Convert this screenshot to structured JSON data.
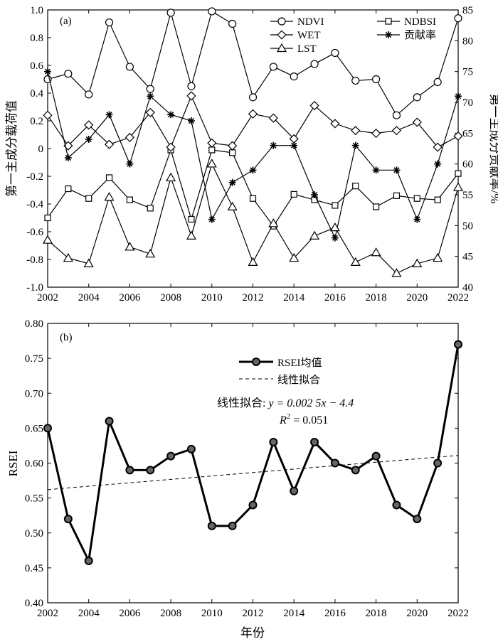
{
  "chart_data": [
    {
      "type": "line",
      "panel_label": "(a)",
      "x": [
        2002,
        2003,
        2004,
        2005,
        2006,
        2007,
        2008,
        2009,
        2010,
        2011,
        2012,
        2013,
        2014,
        2015,
        2016,
        2017,
        2018,
        2019,
        2020,
        2021,
        2022
      ],
      "xlim": [
        2002,
        2022
      ],
      "xticks": [
        "2002",
        "2004",
        "2006",
        "2008",
        "2010",
        "2012",
        "2014",
        "2016",
        "2018",
        "2020",
        "2022"
      ],
      "ylabel": "第一主成分载荷值",
      "ylim": [
        -1.0,
        1.0
      ],
      "yticks": [
        "-1.0",
        "-0.8",
        "-0.6",
        "-0.4",
        "-0.2",
        "0",
        "0.2",
        "0.4",
        "0.6",
        "0.8",
        "1.0"
      ],
      "y2label": "第一主成分贡献率/%",
      "y2lim": [
        40,
        85
      ],
      "y2ticks": [
        "40",
        "45",
        "50",
        "55",
        "60",
        "65",
        "70",
        "75",
        "80",
        "85"
      ],
      "legend_position": "top-right",
      "series": [
        {
          "name": "NDVI",
          "marker": "circle",
          "axis": "left",
          "values": [
            0.5,
            0.54,
            0.39,
            0.91,
            0.59,
            0.43,
            0.98,
            0.45,
            0.99,
            0.9,
            0.37,
            0.59,
            0.52,
            0.61,
            0.69,
            0.49,
            0.5,
            0.24,
            0.37,
            0.48,
            0.94
          ]
        },
        {
          "name": "NDBSI",
          "marker": "square",
          "axis": "left",
          "values": [
            -0.5,
            -0.29,
            -0.36,
            -0.21,
            -0.37,
            -0.43,
            -0.01,
            -0.51,
            -0.01,
            -0.03,
            -0.36,
            -0.56,
            -0.33,
            -0.37,
            -0.41,
            -0.27,
            -0.42,
            -0.34,
            -0.36,
            -0.37,
            -0.18
          ]
        },
        {
          "name": "WET",
          "marker": "diamond",
          "axis": "left",
          "values": [
            0.24,
            0.02,
            0.17,
            0.03,
            0.08,
            0.26,
            0.01,
            0.38,
            0.04,
            0.02,
            0.25,
            0.22,
            0.07,
            0.31,
            0.18,
            0.13,
            0.11,
            0.13,
            0.19,
            0.01,
            0.09
          ]
        },
        {
          "name": "贡献率",
          "marker": "star",
          "axis": "right",
          "values": [
            75,
            61,
            64,
            68,
            60,
            71,
            68,
            67,
            51,
            57,
            59,
            63,
            63,
            55,
            48,
            63,
            59,
            59,
            51,
            60,
            71
          ]
        },
        {
          "name": "LST",
          "marker": "triangle",
          "axis": "left",
          "values": [
            -0.66,
            -0.79,
            -0.83,
            -0.35,
            -0.71,
            -0.76,
            -0.21,
            -0.63,
            -0.11,
            -0.42,
            -0.82,
            -0.54,
            -0.79,
            -0.63,
            -0.57,
            -0.82,
            -0.75,
            -0.9,
            -0.83,
            -0.79,
            -0.28
          ]
        }
      ]
    },
    {
      "type": "line",
      "panel_label": "(b)",
      "x": [
        2002,
        2003,
        2004,
        2005,
        2006,
        2007,
        2008,
        2009,
        2010,
        2011,
        2012,
        2013,
        2014,
        2015,
        2016,
        2017,
        2018,
        2019,
        2020,
        2021,
        2022
      ],
      "xlim": [
        2002,
        2022
      ],
      "xticks": [
        "2002",
        "2004",
        "2006",
        "2008",
        "2010",
        "2012",
        "2014",
        "2016",
        "2018",
        "2020",
        "2022"
      ],
      "xlabel": "年份",
      "ylabel": "RSEI",
      "ylim": [
        0.4,
        0.8
      ],
      "yticks": [
        "0.40",
        "0.45",
        "0.50",
        "0.55",
        "0.60",
        "0.65",
        "0.70",
        "0.75",
        "0.80"
      ],
      "legend_position": "top-center",
      "series": [
        {
          "name": "RSEI均值",
          "marker": "circle",
          "style": "bold",
          "values": [
            0.65,
            0.52,
            0.46,
            0.66,
            0.59,
            0.59,
            0.61,
            0.62,
            0.51,
            0.51,
            0.54,
            0.63,
            0.56,
            0.63,
            0.6,
            0.59,
            0.61,
            0.54,
            0.52,
            0.6,
            0.77
          ]
        },
        {
          "name": "线性拟合",
          "style": "dashed",
          "fit_endpoints": [
            0.562,
            0.611
          ]
        }
      ],
      "annotation": {
        "prefix": "线性拟合: ",
        "equation": "y = 0.002 5x − 4.4",
        "r2_label": "R",
        "r2_value": " = 0.051"
      }
    }
  ]
}
